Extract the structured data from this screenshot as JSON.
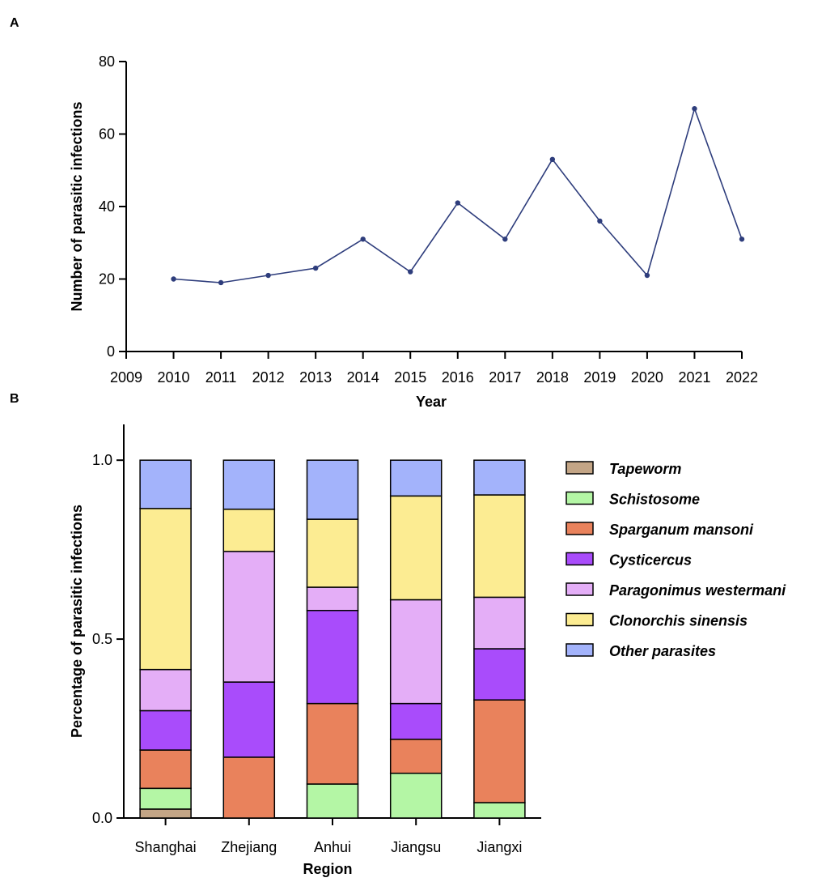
{
  "figure": {
    "panel_a_label": "A",
    "panel_b_label": "B"
  },
  "chart_data": [
    {
      "type": "line",
      "panel": "A",
      "title": "",
      "xlabel": "Year",
      "ylabel": "Number of parasitic infections",
      "x": [
        2010,
        2011,
        2012,
        2013,
        2014,
        2015,
        2016,
        2017,
        2018,
        2019,
        2020,
        2021,
        2022
      ],
      "values": [
        20,
        19,
        21,
        23,
        31,
        22,
        41,
        31,
        53,
        36,
        21,
        67,
        31
      ],
      "xlim": [
        2009,
        2022
      ],
      "ylim": [
        0,
        80
      ],
      "xticks": [
        "2009",
        "2010",
        "2011",
        "2012",
        "2013",
        "2014",
        "2015",
        "2016",
        "2017",
        "2018",
        "2019",
        "2020",
        "2021",
        "2022"
      ],
      "yticks": [
        "0",
        "20",
        "40",
        "60",
        "80"
      ],
      "line_color": "#2e3d7c",
      "grid": false
    },
    {
      "type": "stacked-bar",
      "panel": "B",
      "title": "",
      "xlabel": "Region",
      "ylabel": "Percentage of parasitic infections",
      "categories": [
        "Shanghai",
        "Zhejiang",
        "Anhui",
        "Jiangsu",
        "Jiangxi"
      ],
      "ylim": [
        0,
        1.1
      ],
      "yticks": [
        "0.0",
        "0.5",
        "1.0"
      ],
      "legend_position": "right",
      "grid": false,
      "series": [
        {
          "name": "Tapeworm",
          "color": "#c3a586",
          "values": [
            0.025,
            0,
            0,
            0,
            0
          ]
        },
        {
          "name": "Schistosome",
          "color": "#b4f6a5",
          "values": [
            0.058,
            0,
            0.095,
            0.125,
            0.043
          ]
        },
        {
          "name": "Sparganum mansoni",
          "color": "#e9825c",
          "values": [
            0.107,
            0.17,
            0.225,
            0.095,
            0.287
          ]
        },
        {
          "name": "Cysticercus",
          "color": "#a94cfb",
          "values": [
            0.11,
            0.21,
            0.26,
            0.1,
            0.143
          ]
        },
        {
          "name": "Paragonimus westermani",
          "color": "#e4aef7",
          "values": [
            0.115,
            0.365,
            0.065,
            0.29,
            0.144
          ]
        },
        {
          "name": "Clonorchis sinensis",
          "color": "#fcec92",
          "values": [
            0.45,
            0.118,
            0.19,
            0.29,
            0.286
          ]
        },
        {
          "name": "Other parasites",
          "color": "#a3b3fb",
          "values": [
            0.135,
            0.137,
            0.165,
            0.1,
            0.097
          ]
        }
      ]
    }
  ]
}
